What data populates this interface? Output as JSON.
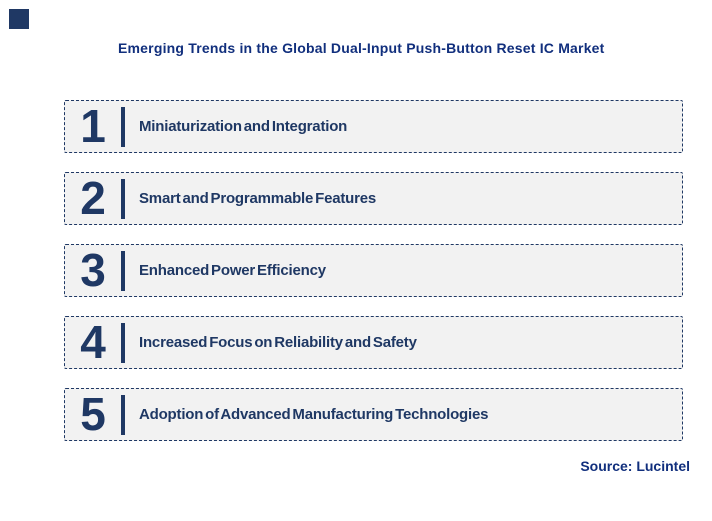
{
  "page": {
    "title": "Emerging Trends in the Global Dual-Input Push-Button Reset IC Market",
    "source": "Source: Lucintel"
  },
  "colors": {
    "navy_box_elements": "#1F3864",
    "navy_title_text": "#112F7D",
    "box_fill": "#F2F2F2",
    "background": "#FFFFFF"
  },
  "trends": [
    {
      "number": "1",
      "label": "Miniaturization and Integration"
    },
    {
      "number": "2",
      "label": "Smart and Programmable Features"
    },
    {
      "number": "3",
      "label": "Enhanced Power Efficiency"
    },
    {
      "number": "4",
      "label": "Increased Focus on Reliability and Safety"
    },
    {
      "number": "5",
      "label": "Adoption of Advanced Manufacturing Technologies"
    }
  ]
}
